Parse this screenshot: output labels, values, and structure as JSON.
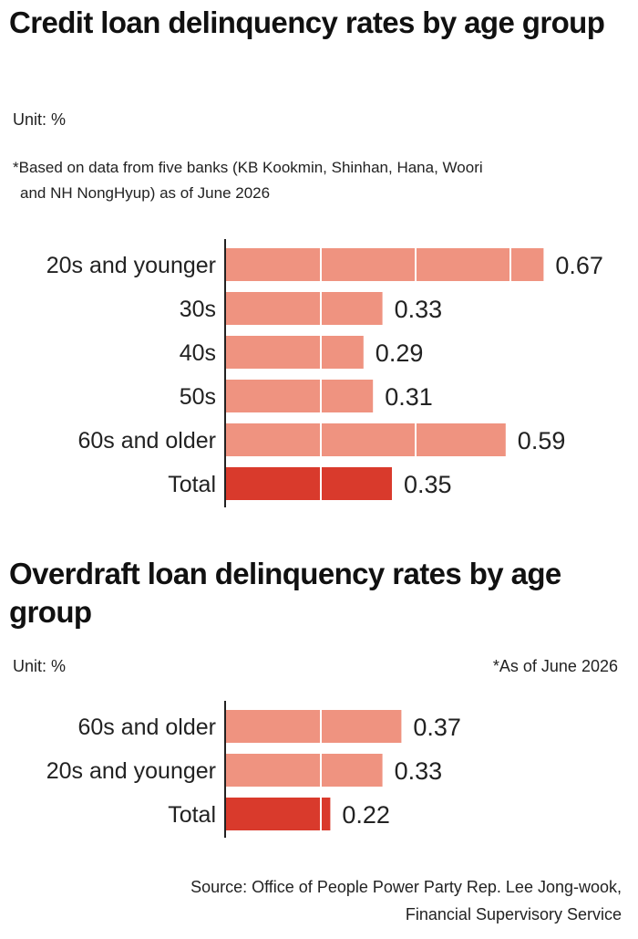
{
  "chart_data": [
    {
      "type": "bar",
      "orientation": "horizontal",
      "title": "Credit loan delinquency rates by age group",
      "unit": "Unit: %",
      "note_line1": "*Based on data from five banks (KB Kookmin, Shinhan, Hana, Woori",
      "note_line2": "and NH NongHyup) as of June 2026",
      "categories": [
        "20s and younger",
        "30s",
        "40s",
        "50s",
        "60s and older",
        "Total"
      ],
      "values": [
        0.67,
        0.33,
        0.29,
        0.31,
        0.59,
        0.35
      ],
      "value_labels": [
        "0.67",
        "0.33",
        "0.29",
        "0.31",
        "0.59",
        "0.35"
      ],
      "highlight": [
        false,
        false,
        false,
        false,
        false,
        true
      ]
    },
    {
      "type": "bar",
      "orientation": "horizontal",
      "title": "Overdraft loan delinquency rates by age group",
      "unit": "Unit: %",
      "note": "*As of June 2026",
      "categories": [
        "60s and older",
        "20s and younger",
        "Total"
      ],
      "values": [
        0.37,
        0.33,
        0.22
      ],
      "value_labels": [
        "0.37",
        "0.33",
        "0.22"
      ],
      "highlight": [
        false,
        false,
        true
      ]
    }
  ],
  "source_line1": "Source: Office of People Power Party Rep. Lee Jong-wook,",
  "source_line2": "Financial Supervisory Service",
  "colors": {
    "bar": "#ef9380",
    "highlight": "#d93a2c",
    "axis": "#222222",
    "label": "#222222"
  }
}
